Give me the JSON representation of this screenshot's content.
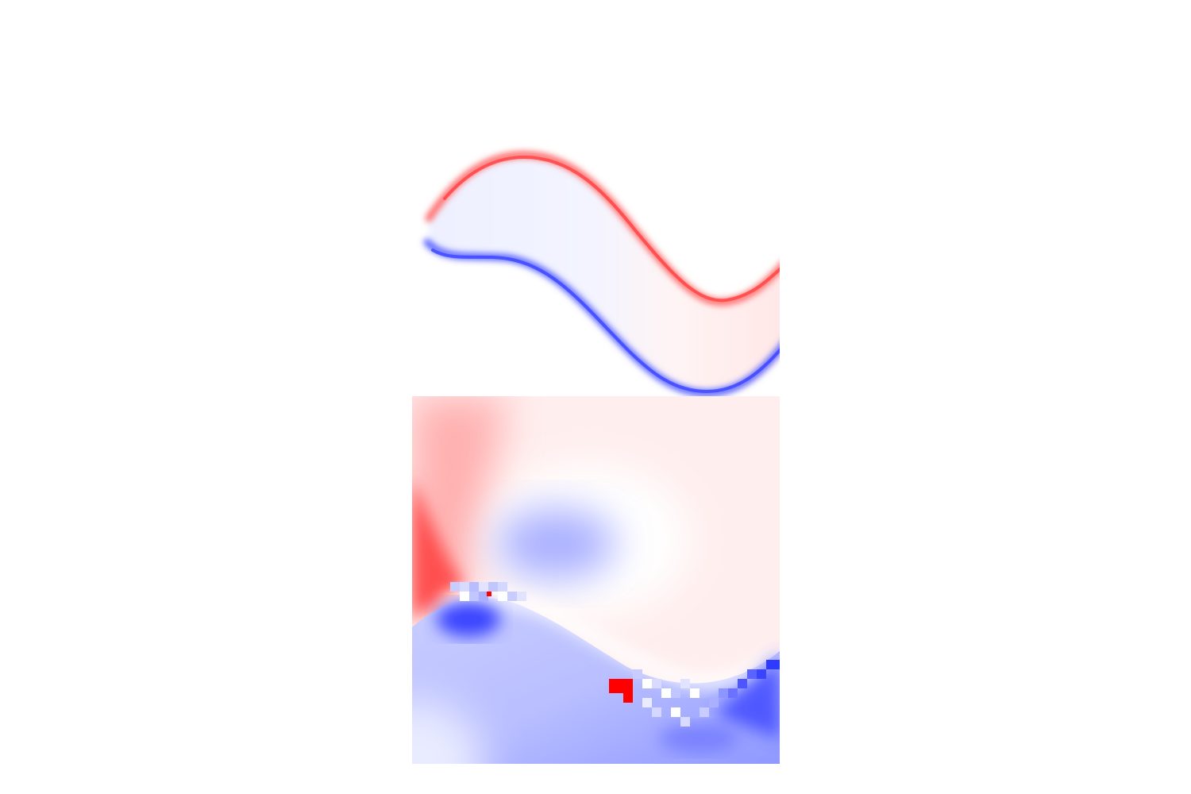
{
  "figure": {
    "colormap": "bwr",
    "colors": {
      "positive": "#ff0000",
      "neutral": "#ffffff",
      "negative": "#0000ff"
    }
  }
}
